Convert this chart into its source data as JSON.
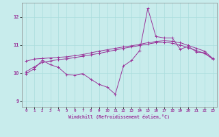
{
  "title": "",
  "xlabel": "Windchill (Refroidissement éolien,°C)",
  "background_color": "#c8ecec",
  "line_color": "#993399",
  "grid_color": "#aadddd",
  "xlim": [
    -0.5,
    23.5
  ],
  "ylim": [
    8.8,
    12.5
  ],
  "yticks": [
    9,
    10,
    11,
    12
  ],
  "xticks": [
    0,
    1,
    2,
    3,
    4,
    5,
    6,
    7,
    8,
    9,
    10,
    11,
    12,
    13,
    14,
    15,
    16,
    17,
    18,
    19,
    20,
    21,
    22,
    23
  ],
  "series": {
    "line1_x": [
      0,
      1,
      2,
      3,
      4,
      5,
      6,
      7,
      8,
      9,
      10,
      11,
      12,
      13,
      14,
      15,
      16,
      17,
      18,
      19,
      20,
      21,
      22,
      23
    ],
    "line1_y": [
      9.98,
      10.15,
      10.45,
      10.3,
      10.2,
      9.95,
      9.93,
      9.98,
      9.78,
      9.6,
      9.5,
      9.25,
      10.25,
      10.45,
      10.8,
      12.3,
      11.3,
      11.25,
      11.25,
      10.85,
      10.95,
      10.75,
      10.72,
      10.5
    ],
    "line2_x": [
      0,
      1,
      2,
      3,
      4,
      5,
      6,
      7,
      8,
      9,
      10,
      11,
      12,
      13,
      14,
      15,
      16,
      17,
      18,
      19,
      20,
      21,
      22,
      23
    ],
    "line2_y": [
      10.42,
      10.5,
      10.52,
      10.54,
      10.56,
      10.58,
      10.62,
      10.66,
      10.72,
      10.78,
      10.83,
      10.88,
      10.93,
      10.97,
      11.02,
      11.08,
      11.12,
      11.15,
      11.13,
      11.08,
      10.98,
      10.88,
      10.78,
      10.52
    ],
    "line3_x": [
      0,
      1,
      2,
      3,
      4,
      5,
      6,
      7,
      8,
      9,
      10,
      11,
      12,
      13,
      14,
      15,
      16,
      17,
      18,
      19,
      20,
      21,
      22,
      23
    ],
    "line3_y": [
      10.05,
      10.22,
      10.38,
      10.43,
      10.48,
      10.51,
      10.55,
      10.6,
      10.65,
      10.7,
      10.76,
      10.82,
      10.88,
      10.93,
      10.98,
      11.03,
      11.08,
      11.1,
      11.06,
      11.0,
      10.9,
      10.8,
      10.7,
      10.5
    ]
  }
}
